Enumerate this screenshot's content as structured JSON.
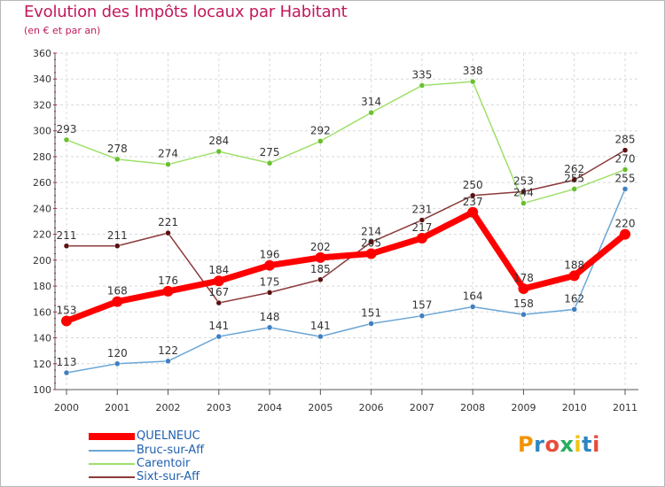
{
  "header": {
    "title": "Evolution des Impôts locaux par Habitant",
    "subtitle": "(en € et par an)"
  },
  "legend": {
    "items": [
      {
        "label": "QUELNEUC",
        "color": "#ff0000"
      },
      {
        "label": "Bruc-sur-Aff",
        "color": "#5b9bd5"
      },
      {
        "label": "Carentoir",
        "color": "#8fd14f"
      },
      {
        "label": "Sixt-sur-Aff",
        "color": "#7b2020"
      }
    ]
  },
  "logo": {
    "letters": [
      "P",
      "r",
      "o",
      "x",
      "i",
      "t",
      "i"
    ],
    "colors": [
      "#f29400",
      "#2e86c1",
      "#e74c3c",
      "#27ae60",
      "#f1c40f",
      "#2e86c1",
      "#e74c3c"
    ]
  },
  "chart_data": {
    "type": "line",
    "title": "Evolution des Impôts locaux par Habitant",
    "subtitle": "(en € et par an)",
    "xlabel": "",
    "ylabel": "",
    "x": [
      "2000",
      "2001",
      "2002",
      "2003",
      "2004",
      "2005",
      "2006",
      "2007",
      "2008",
      "2009",
      "2010",
      "2011"
    ],
    "ylim": [
      100,
      360
    ],
    "yticks": [
      100,
      120,
      140,
      160,
      180,
      200,
      220,
      240,
      260,
      280,
      300,
      320,
      340,
      360
    ],
    "grid": true,
    "legend_position": "bottom-left",
    "series": [
      {
        "name": "QUELNEUC",
        "color": "#ff0000",
        "marker": "#ff0000",
        "emphasis": true,
        "values": [
          153,
          168,
          176,
          184,
          196,
          202,
          205,
          217,
          237,
          178,
          188,
          220
        ]
      },
      {
        "name": "Bruc-sur-Aff",
        "color": "#6aa6d6",
        "marker": "#3f7fc0",
        "emphasis": false,
        "values": [
          113,
          120,
          122,
          141,
          148,
          141,
          151,
          157,
          164,
          158,
          162,
          255
        ]
      },
      {
        "name": "Carentoir",
        "color": "#9ee06a",
        "marker": "#6abf2e",
        "emphasis": false,
        "values": [
          293,
          278,
          274,
          284,
          275,
          292,
          314,
          335,
          338,
          244,
          255,
          270
        ]
      },
      {
        "name": "Sixt-sur-Aff",
        "color": "#8b3a3a",
        "marker": "#5a1010",
        "emphasis": false,
        "values": [
          211,
          211,
          221,
          167,
          175,
          185,
          214,
          231,
          250,
          253,
          262,
          285
        ]
      }
    ]
  }
}
